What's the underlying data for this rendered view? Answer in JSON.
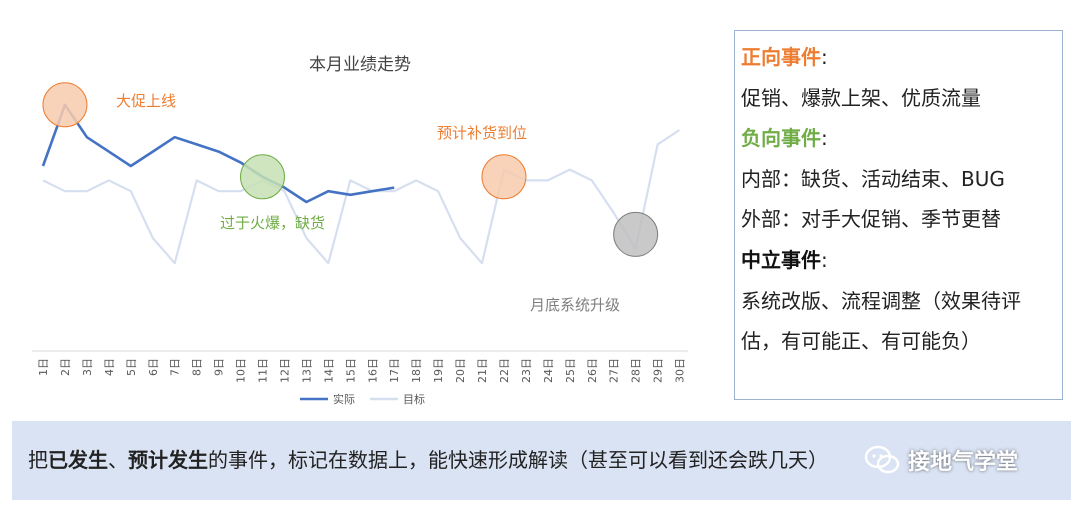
{
  "chart_data": {
    "type": "line",
    "title": "本月业绩走势",
    "categories": [
      "1日",
      "2日",
      "3日",
      "4日",
      "5日",
      "6日",
      "7日",
      "8日",
      "9日",
      "10日",
      "11日",
      "12日",
      "13日",
      "14日",
      "15日",
      "16日",
      "17日",
      "18日",
      "19日",
      "20日",
      "21日",
      "22日",
      "23日",
      "24日",
      "25日",
      "26日",
      "27日",
      "28日",
      "29日",
      "30日"
    ],
    "series": [
      {
        "name": "实际",
        "color": "#4472c4",
        "values": [
          1.5,
          3.2,
          2.3,
          1.9,
          1.5,
          1.9,
          2.3,
          2.1,
          1.9,
          1.6,
          1.2,
          0.9,
          0.5,
          0.8,
          0.7,
          0.8,
          0.9,
          null,
          null,
          null,
          null,
          null,
          null,
          null,
          null,
          null,
          null,
          null,
          null,
          null
        ]
      },
      {
        "name": "目标",
        "color": "#d6dff0",
        "values": [
          1.1,
          0.8,
          0.8,
          1.1,
          0.8,
          -0.5,
          -1.2,
          1.1,
          0.8,
          0.8,
          1.1,
          0.8,
          -0.5,
          -1.2,
          1.1,
          0.8,
          0.8,
          1.1,
          0.8,
          -0.5,
          -1.2,
          1.4,
          1.1,
          1.1,
          1.4,
          1.1,
          0.2,
          -0.8,
          2.1,
          2.5
        ]
      }
    ],
    "legend_position": "bottom",
    "grid": false,
    "annotations": [
      {
        "text": "大促上线",
        "day": 2,
        "value": 3.2,
        "color": "#ed7d31",
        "fill": "#f8cbad"
      },
      {
        "text": "过于火爆，缺货",
        "day": 11,
        "value": 1.2,
        "color": "#70ad47",
        "fill": "#c5e0b4"
      },
      {
        "text": "预计补货到位",
        "day": 22,
        "value": 1.2,
        "color": "#ed7d31",
        "fill": "#f8cbad"
      },
      {
        "text": "月底系统升级",
        "day": 28,
        "value": -0.4,
        "color": "#7f7f7f",
        "fill": "#bfbfbf"
      }
    ]
  },
  "event_panel": {
    "positive_title": "正向事件",
    "positive_colon": ":",
    "positive_items": "促销、爆款上架、优质流量",
    "negative_title": "负向事件",
    "negative_colon": ":",
    "negative_internal": "内部：缺货、活动结束、BUG",
    "negative_external": "外部：对手大促销、季节更替",
    "neutral_title": "中立事件",
    "neutral_colon": ":",
    "neutral_items_1": "系统改版、流程调整（效果待评",
    "neutral_items_2": "估，有可能正、有可能负）"
  },
  "banner": {
    "p1": "把",
    "b1": "已发生",
    "p2": "、",
    "b2": "预计发生",
    "p3": "的事件，标记在数据上，能快速形成解读（甚至可以看到还会跌几天）"
  },
  "watermark": {
    "text": "接地气学堂",
    "icon": "wechat-icon"
  }
}
